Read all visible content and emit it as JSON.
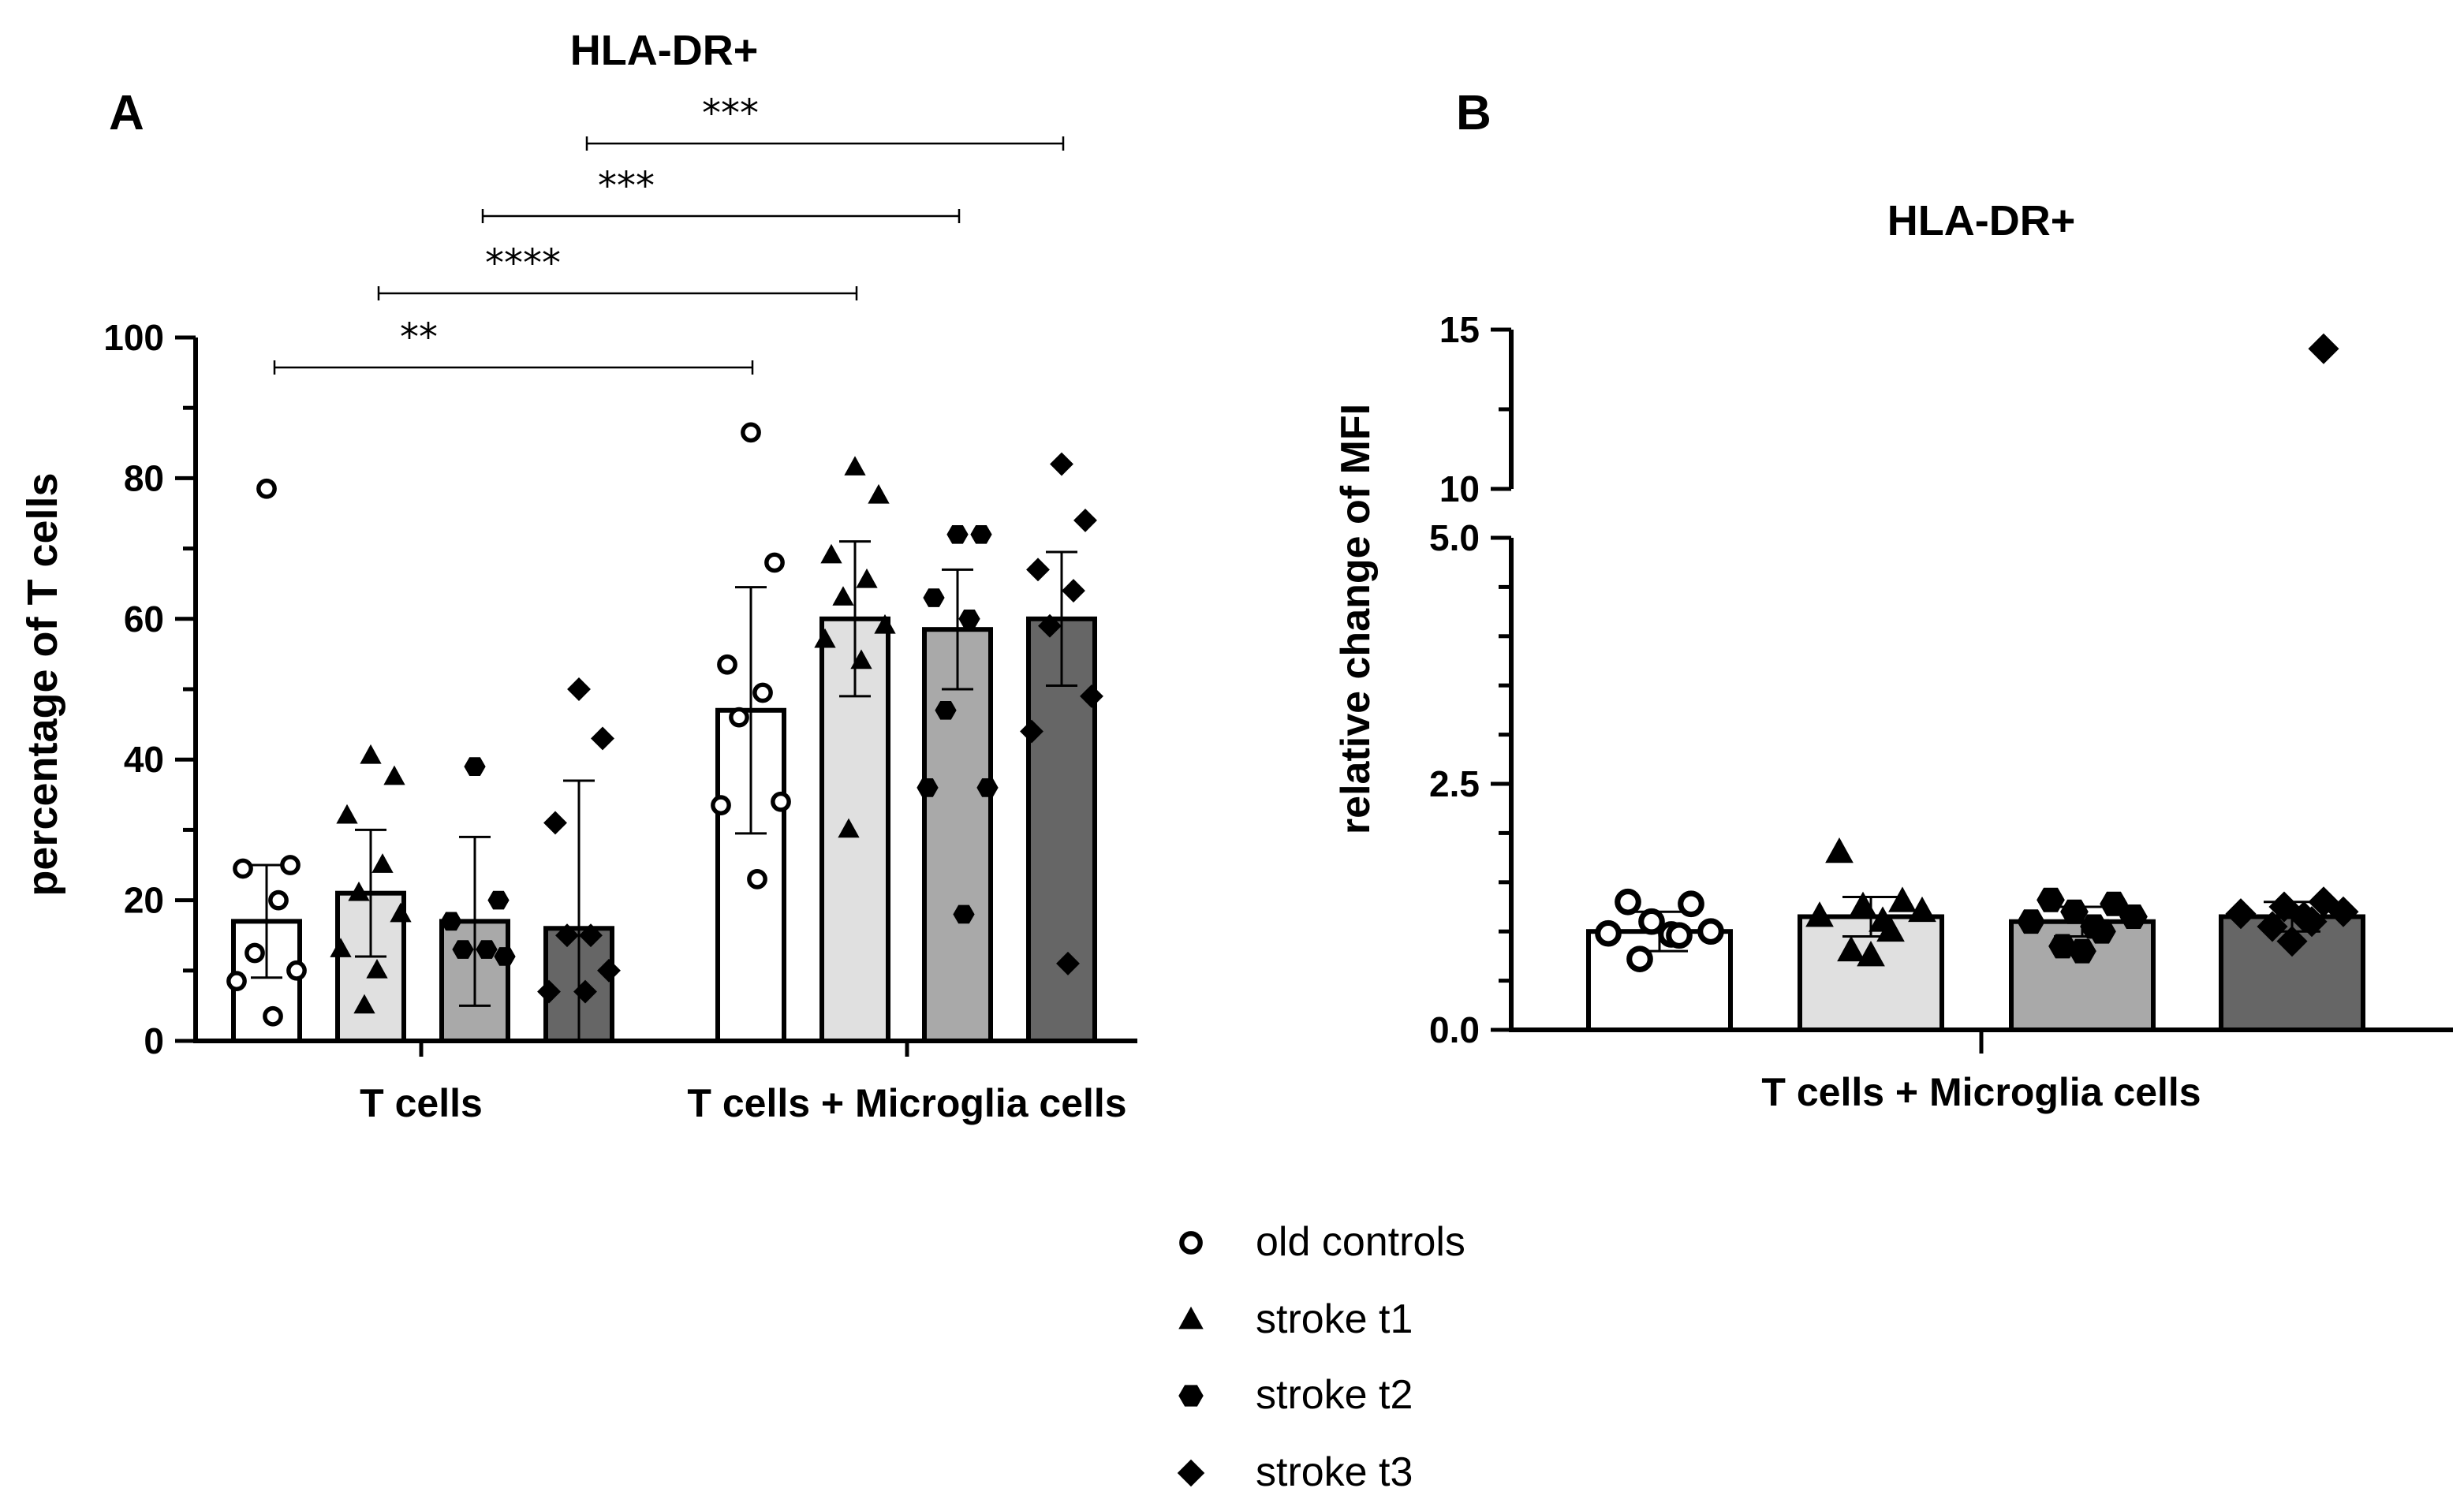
{
  "figure": {
    "panel_a_letter": "A",
    "panel_b_letter": "B"
  },
  "legend": [
    {
      "label": "old controls",
      "marker": "open-circle"
    },
    {
      "label": "stroke t1",
      "marker": "triangle"
    },
    {
      "label": "stroke t2",
      "marker": "hexagon"
    },
    {
      "label": "stroke t3",
      "marker": "diamond"
    }
  ],
  "chart_data": [
    {
      "type": "bar",
      "title": "HLA-DR+",
      "ylabel": "percentage of T cells",
      "ylim": [
        0,
        100
      ],
      "yticks": [
        "0",
        "20",
        "40",
        "60",
        "80",
        "100"
      ],
      "groups": [
        "T cells",
        "T cells + Microglia cells"
      ],
      "bar_colors": [
        "#ffffff",
        "#e0e0e0",
        "#a9a9a9",
        "#666666"
      ],
      "series": [
        {
          "name": "old controls",
          "values": [
            17,
            47
          ],
          "sd": [
            8,
            17.5
          ],
          "points": [
            [
              78.5,
              25,
              24.5,
              20,
              12.5,
              10,
              8.5,
              3.5
            ],
            [
              86.5,
              68,
              53.5,
              49.5,
              46,
              34,
              33.5,
              23
            ]
          ]
        },
        {
          "name": "stroke t1",
          "values": [
            21,
            60
          ],
          "sd": [
            9,
            11
          ],
          "points": [
            [
              40.5,
              37.5,
              32,
              25,
              21,
              18,
              13,
              10,
              5
            ],
            [
              81.5,
              77.5,
              69,
              65.5,
              63,
              59,
              57,
              54,
              30
            ]
          ]
        },
        {
          "name": "stroke t2",
          "values": [
            17,
            58.5
          ],
          "sd": [
            12,
            8.5
          ],
          "points": [
            [
              39,
              20,
              17,
              13,
              13,
              12
            ],
            [
              72,
              72,
              63,
              60,
              47,
              36,
              36,
              18
            ]
          ]
        },
        {
          "name": "stroke t3",
          "values": [
            16,
            60
          ],
          "sd": [
            21,
            9.5
          ],
          "points": [
            [
              50,
              43,
              31,
              15,
              15,
              10,
              7,
              7
            ],
            [
              82,
              74,
              67,
              64,
              59,
              49,
              44,
              11
            ]
          ]
        }
      ],
      "significance": [
        {
          "label": "**",
          "from": "T cells · old controls",
          "to": "T cells + Microglia cells · old controls"
        },
        {
          "label": "****",
          "from": "T cells · stroke t1",
          "to": "T cells + Microglia cells · stroke t1"
        },
        {
          "label": "***",
          "from": "T cells · stroke t2",
          "to": "T cells + Microglia cells · stroke t2"
        },
        {
          "label": "***",
          "from": "T cells · stroke t3",
          "to": "T cells + Microglia cells · stroke t3"
        }
      ]
    },
    {
      "type": "bar",
      "title": "HLA-DR+",
      "ylabel": "relative change of MFI",
      "ylim_lower": [
        0,
        5
      ],
      "ylim_upper": [
        10,
        15
      ],
      "yticks": [
        "0.0",
        "2.5",
        "5.0",
        "10",
        "15"
      ],
      "axis_break": true,
      "groups": [
        "T cells + Microglia cells"
      ],
      "series": [
        {
          "name": "old controls",
          "values": [
            1.0
          ],
          "sd": [
            0.2
          ],
          "points": [
            1.3,
            1.28,
            1.1,
            1.0,
            0.98,
            0.97,
            0.96,
            0.72
          ]
        },
        {
          "name": "stroke t1",
          "values": [
            1.15
          ],
          "sd": [
            0.2
          ],
          "points": [
            1.8,
            1.3,
            1.25,
            1.2,
            1.15,
            1.1,
            1.0,
            0.8,
            0.75
          ]
        },
        {
          "name": "stroke t2",
          "values": [
            1.1
          ],
          "sd": [
            0.15
          ],
          "points": [
            1.32,
            1.28,
            1.2,
            1.15,
            1.1,
            1.05,
            1.0,
            0.85,
            0.8
          ]
        },
        {
          "name": "stroke t3",
          "values": [
            1.15
          ],
          "sd": [
            0.15
          ],
          "points": [
            14.4,
            1.3,
            1.25,
            1.2,
            1.18,
            1.15,
            1.1,
            1.05,
            0.9
          ]
        }
      ]
    }
  ]
}
